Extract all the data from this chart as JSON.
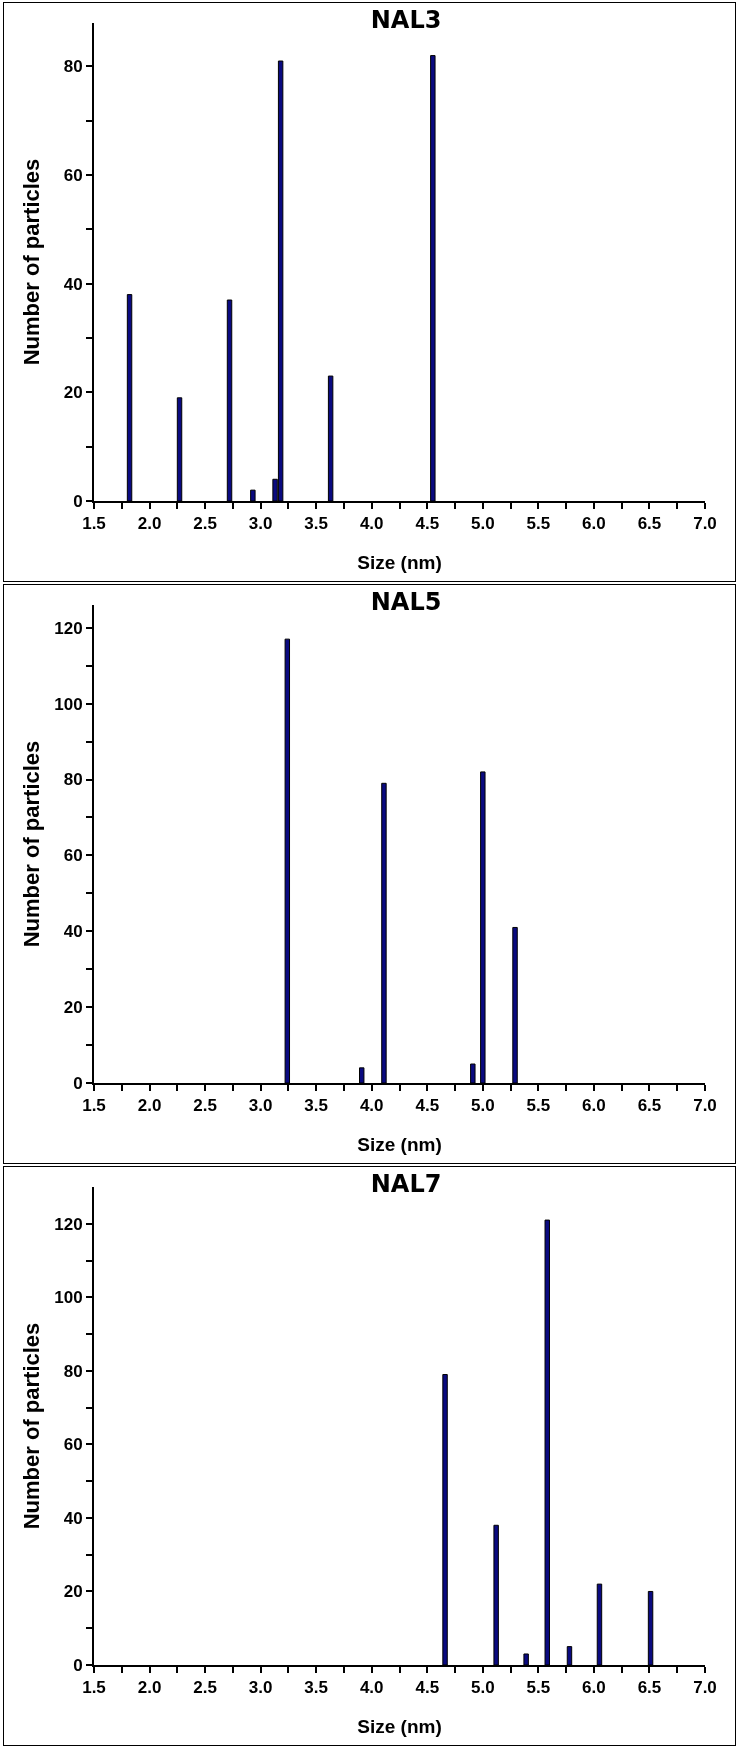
{
  "chart_data": [
    {
      "type": "bar",
      "title": "NAL3",
      "xlabel": "Size (nm)",
      "ylabel": "Number of particles",
      "x": [
        1.82,
        2.27,
        2.72,
        2.93,
        3.13,
        3.18,
        3.63,
        4.55
      ],
      "values": [
        38,
        19,
        37,
        2,
        4,
        81,
        23,
        82
      ],
      "color": "#0a0a80",
      "xlim": [
        1.5,
        7.0
      ],
      "xticks": [
        {
          "value": 1.5,
          "label": "1.5"
        },
        {
          "value": 1.75,
          "label": null
        },
        {
          "value": 2.0,
          "label": "2.0"
        },
        {
          "value": 2.25,
          "label": null
        },
        {
          "value": 2.5,
          "label": "2.5"
        },
        {
          "value": 2.75,
          "label": null
        },
        {
          "value": 3.0,
          "label": "3.0"
        },
        {
          "value": 3.25,
          "label": null
        },
        {
          "value": 3.5,
          "label": "3.5"
        },
        {
          "value": 3.75,
          "label": null
        },
        {
          "value": 4.0,
          "label": "4.0"
        },
        {
          "value": 4.25,
          "label": null
        },
        {
          "value": 4.5,
          "label": "4.5"
        },
        {
          "value": 4.75,
          "label": null
        },
        {
          "value": 5.0,
          "label": "5.0"
        },
        {
          "value": 5.25,
          "label": null
        },
        {
          "value": 5.5,
          "label": "5.5"
        },
        {
          "value": 5.75,
          "label": null
        },
        {
          "value": 6.0,
          "label": "6.0"
        },
        {
          "value": 6.25,
          "label": null
        },
        {
          "value": 6.5,
          "label": "6.5"
        },
        {
          "value": 6.75,
          "label": null
        },
        {
          "value": 7.0,
          "label": "7.0"
        }
      ],
      "ylim": [
        0,
        88
      ],
      "yticks": [
        0,
        {
          "value": 10,
          "label": null
        },
        20,
        {
          "value": 30,
          "label": null
        },
        40,
        {
          "value": 50,
          "label": null
        },
        60,
        {
          "value": 70,
          "label": null
        },
        80
      ]
    },
    {
      "type": "bar",
      "title": "NAL5",
      "xlabel": "Size (nm)",
      "ylabel": "Number of particles",
      "x": [
        3.24,
        3.91,
        4.11,
        4.91,
        5.0,
        5.29
      ],
      "values": [
        117,
        4,
        79,
        5,
        82,
        41
      ],
      "color": "#0a0a80",
      "xlim": [
        1.5,
        7.0
      ],
      "xticks": [
        {
          "value": 1.5,
          "label": "1.5"
        },
        {
          "value": 1.75,
          "label": null
        },
        {
          "value": 2.0,
          "label": "2.0"
        },
        {
          "value": 2.25,
          "label": null
        },
        {
          "value": 2.5,
          "label": "2.5"
        },
        {
          "value": 2.75,
          "label": null
        },
        {
          "value": 3.0,
          "label": "3.0"
        },
        {
          "value": 3.25,
          "label": null
        },
        {
          "value": 3.5,
          "label": "3.5"
        },
        {
          "value": 3.75,
          "label": null
        },
        {
          "value": 4.0,
          "label": "4.0"
        },
        {
          "value": 4.25,
          "label": null
        },
        {
          "value": 4.5,
          "label": "4.5"
        },
        {
          "value": 4.75,
          "label": null
        },
        {
          "value": 5.0,
          "label": "5.0"
        },
        {
          "value": 5.25,
          "label": null
        },
        {
          "value": 5.5,
          "label": "5.5"
        },
        {
          "value": 5.75,
          "label": null
        },
        {
          "value": 6.0,
          "label": "6.0"
        },
        {
          "value": 6.25,
          "label": null
        },
        {
          "value": 6.5,
          "label": "6.5"
        },
        {
          "value": 6.75,
          "label": null
        },
        {
          "value": 7.0,
          "label": "7.0"
        }
      ],
      "ylim": [
        0,
        126
      ],
      "yticks": [
        0,
        {
          "value": 10,
          "label": null
        },
        20,
        {
          "value": 30,
          "label": null
        },
        40,
        {
          "value": 50,
          "label": null
        },
        60,
        {
          "value": 70,
          "label": null
        },
        80,
        {
          "value": 90,
          "label": null
        },
        100,
        {
          "value": 110,
          "label": null
        },
        120
      ]
    },
    {
      "type": "bar",
      "title": "NAL7",
      "xlabel": "Size (nm)",
      "ylabel": "Number of particles",
      "x": [
        4.66,
        5.12,
        5.39,
        5.58,
        5.78,
        6.05,
        6.51
      ],
      "values": [
        79,
        38,
        3,
        121,
        5,
        22,
        20
      ],
      "color": "#0a0a80",
      "xlim": [
        1.5,
        7.0
      ],
      "xticks": [
        {
          "value": 1.5,
          "label": "1.5"
        },
        {
          "value": 1.75,
          "label": null
        },
        {
          "value": 2.0,
          "label": "2.0"
        },
        {
          "value": 2.25,
          "label": null
        },
        {
          "value": 2.5,
          "label": "2.5"
        },
        {
          "value": 2.75,
          "label": null
        },
        {
          "value": 3.0,
          "label": "3.0"
        },
        {
          "value": 3.25,
          "label": null
        },
        {
          "value": 3.5,
          "label": "3.5"
        },
        {
          "value": 3.75,
          "label": null
        },
        {
          "value": 4.0,
          "label": "4.0"
        },
        {
          "value": 4.25,
          "label": null
        },
        {
          "value": 4.5,
          "label": "4.5"
        },
        {
          "value": 4.75,
          "label": null
        },
        {
          "value": 5.0,
          "label": "5.0"
        },
        {
          "value": 5.25,
          "label": null
        },
        {
          "value": 5.5,
          "label": "5.5"
        },
        {
          "value": 5.75,
          "label": null
        },
        {
          "value": 6.0,
          "label": "6.0"
        },
        {
          "value": 6.25,
          "label": null
        },
        {
          "value": 6.5,
          "label": "6.5"
        },
        {
          "value": 6.75,
          "label": null
        },
        {
          "value": 7.0,
          "label": "7.0"
        }
      ],
      "ylim": [
        0,
        130
      ],
      "yticks": [
        0,
        {
          "value": 10,
          "label": null
        },
        20,
        {
          "value": 30,
          "label": null
        },
        40,
        {
          "value": 50,
          "label": null
        },
        60,
        {
          "value": 70,
          "label": null
        },
        80,
        {
          "value": 90,
          "label": null
        },
        100,
        {
          "value": 110,
          "label": null
        },
        120
      ]
    }
  ]
}
